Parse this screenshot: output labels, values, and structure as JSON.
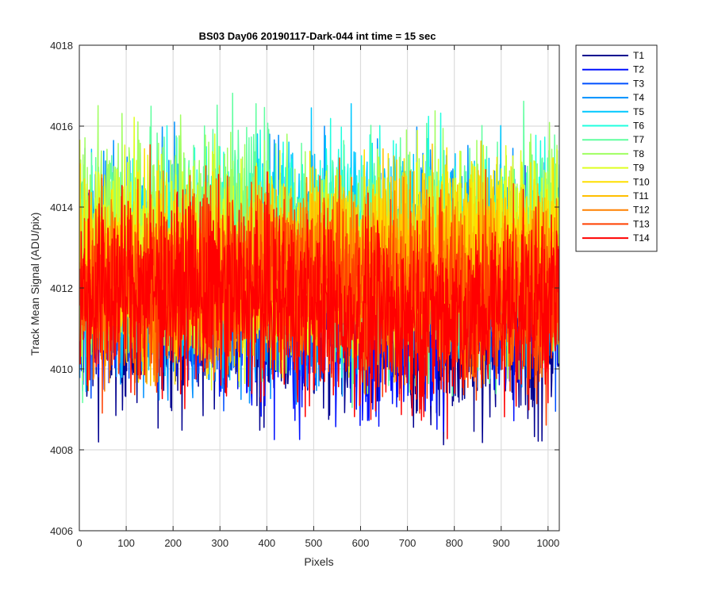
{
  "chart_data": {
    "type": "line",
    "title": "BS03 Day06 20190117-Dark-044 int time = 15 sec",
    "xlabel": "Pixels",
    "ylabel": "Track Mean Signal (ADU/pix)",
    "xlim": [
      0,
      1024
    ],
    "ylim": [
      4006,
      4018
    ],
    "xticks": [
      0,
      100,
      200,
      300,
      400,
      500,
      600,
      700,
      800,
      900,
      1000
    ],
    "yticks": [
      4006,
      4008,
      4010,
      4012,
      4014,
      4016,
      4018
    ],
    "grid": true,
    "legend_position": "outside-top-right",
    "x_range": [
      1,
      1024
    ],
    "series": [
      {
        "name": "T1",
        "color": "#00008F",
        "mean": 4011.2,
        "min": 4007.0,
        "max": 4014.6
      },
      {
        "name": "T2",
        "color": "#0010FF",
        "mean": 4011.5,
        "min": 4007.6,
        "max": 4015.2
      },
      {
        "name": "T3",
        "color": "#0050FF",
        "mean": 4012.0,
        "min": 4008.4,
        "max": 4015.6
      },
      {
        "name": "T4",
        "color": "#0090FF",
        "mean": 4012.5,
        "min": 4009.0,
        "max": 4017.5
      },
      {
        "name": "T5",
        "color": "#00C8FF",
        "mean": 4012.8,
        "min": 4009.2,
        "max": 4017.0
      },
      {
        "name": "T6",
        "color": "#20FFDF",
        "mean": 4013.0,
        "min": 4009.4,
        "max": 4016.9
      },
      {
        "name": "T7",
        "color": "#60FF9F",
        "mean": 4013.0,
        "min": 4008.5,
        "max": 4017.6
      },
      {
        "name": "T8",
        "color": "#9FFF60",
        "mean": 4012.9,
        "min": 4009.2,
        "max": 4017.7
      },
      {
        "name": "T9",
        "color": "#DFFF20",
        "mean": 4012.8,
        "min": 4009.3,
        "max": 4016.8
      },
      {
        "name": "T10",
        "color": "#FFDF00",
        "mean": 4012.6,
        "min": 4009.6,
        "max": 4016.6
      },
      {
        "name": "T11",
        "color": "#FFBF00",
        "mean": 4012.4,
        "min": 4009.5,
        "max": 4016.5
      },
      {
        "name": "T12",
        "color": "#FF8000",
        "mean": 4012.2,
        "min": 4009.4,
        "max": 4016.3
      },
      {
        "name": "T13",
        "color": "#FF4000",
        "mean": 4012.0,
        "min": 4008.6,
        "max": 4016.0
      },
      {
        "name": "T14",
        "color": "#FF0000",
        "mean": 4011.6,
        "min": 4008.2,
        "max": 4015.4
      }
    ]
  }
}
